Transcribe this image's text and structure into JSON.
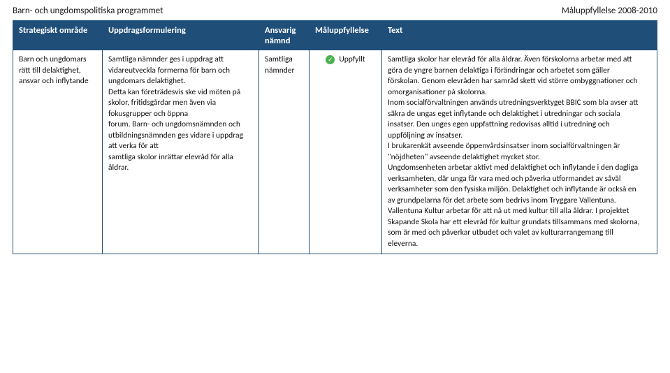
{
  "header": {
    "left": "Barn- och ungdomspolitiska programmet",
    "right": "Måluppfyllelse 2008-2010"
  },
  "columns": {
    "c0": "Strategiskt område",
    "c1": "Uppdragsformulering",
    "c2": "Ansvarig\nnämnd",
    "c3": "Måluppfyllelse",
    "c4": "Text"
  },
  "row": {
    "strat": "Barn och ungdomars rätt till delaktighet, ansvar och inflytande",
    "uppdrag": "Samtliga nämnder ges i uppdrag att vidareutveckla formerna för barn och ungdomars delaktighet.\nDetta kan företrädesvis ske vid möten på skolor, fritidsgårdar men även via fokusgrupper och öppna\nforum. Barn- och ungdomsnämnden och utbildningsnämnden ges vidare i uppdrag att verka för att\nsamtliga skolor inrättar elevråd för alla åldrar.",
    "ansvarig": "Samtliga\nnämnder",
    "mal_label": "Uppfyllt",
    "text": "Samtliga skolor har elevråd för alla åldrar. Även förskolorna arbetar med att göra de yngre barnen delaktiga i förändringar och arbetet som gäller förskolan. Genom elevråden har samråd skett vid större ombyggnationer och omorganisationer på skolorna.\nInom socialförvaltningen används utredningsverktyget BBIC som bla avser att säkra de ungas eget inflytande och delaktighet i utredningar och sociala insatser. Den unges egen uppfattning redovisas alltid i utredning och uppföljning av insatser.\nI brukarenkät avseende öppenvårdsinsatser inom socialförvaltningen  är \"nöjdheten\" avseende delaktighet mycket stor.\nUngdomsenheten arbetar aktivt med delaktighet och inflytande i den dagliga verksamheten, där unga får vara med och påverka utformandet av såväl verksamheter som den fysiska miljön. Delaktighet och inflytande är också en av grundpelarna för det arbete som bedrivs inom Tryggare Vallentuna.\nVallentuna Kultur arbetar för att nå ut med kultur till alla åldrar. I projektet Skapande Skola har ett elevråd för kultur grundats tillsammans med skolorna,  som är med och påverkar utbudet och valet av kulturarrangemang till eleverna."
  },
  "colors": {
    "header_bg": "#1f4e79",
    "header_text": "#ffffff",
    "border": "#1f4e79",
    "body_text": "#111111",
    "check_bg": "#4caf50"
  }
}
